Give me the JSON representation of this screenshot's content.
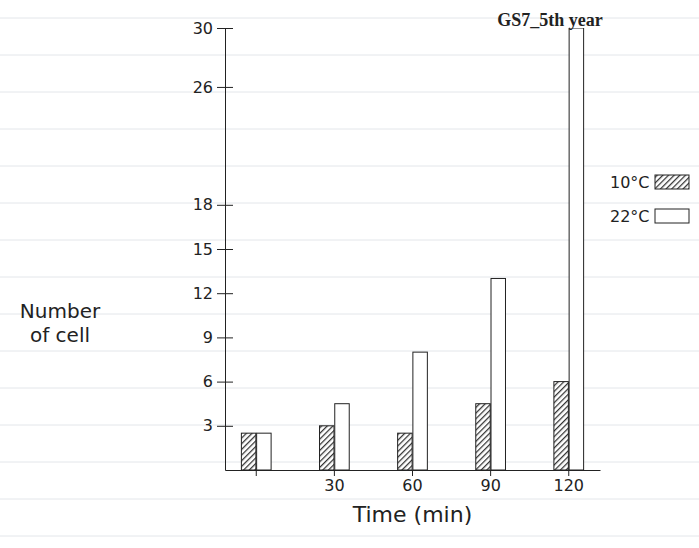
{
  "chart_data": {
    "type": "bar",
    "title": "GS7_5th year",
    "x_label": "Time (min)",
    "y_label": "Number of cell",
    "categories": [
      null,
      "30",
      "60",
      "90",
      "120"
    ],
    "series": [
      {
        "name": "10°C",
        "color": "#333333",
        "values": [
          2.5,
          3,
          2.5,
          4.5,
          6
        ]
      },
      {
        "name": "22°C",
        "color": "#ffffff",
        "values": [
          2.5,
          4.5,
          8,
          13,
          30
        ]
      }
    ],
    "ylim": [
      0,
      30
    ],
    "yticks": [
      3,
      6,
      9,
      12,
      15,
      18,
      26,
      30
    ],
    "grid": false,
    "legend": "right"
  }
}
